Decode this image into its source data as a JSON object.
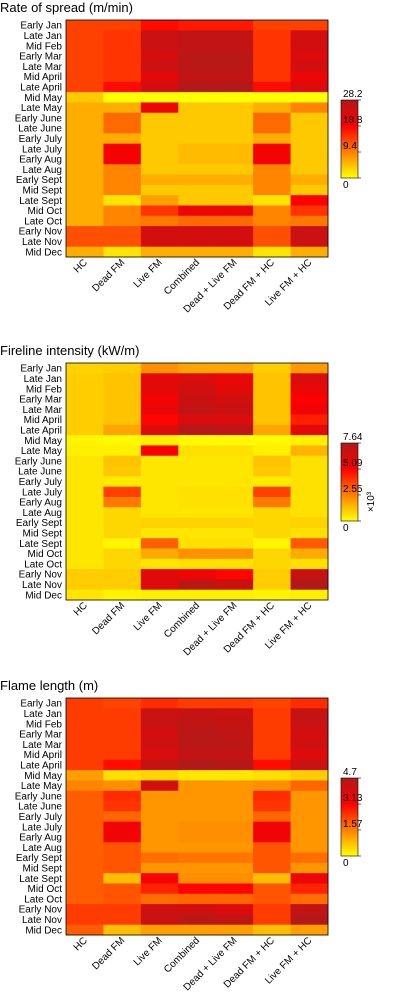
{
  "chart_data": [
    {
      "type": "heatmap",
      "title": "Rate of spread (m/min)",
      "rows": [
        "Early Jan",
        "Late Jan",
        "Mid Feb",
        "Early Mar",
        "Late Mar",
        "Mid April",
        "Late April",
        "Mid May",
        "Late May",
        "Early June",
        "Late June",
        "Early July",
        "Late July",
        "Early Aug",
        "Late Aug",
        "Early Sept",
        "Mid Sept",
        "Late Sept",
        "Mid Oct",
        "Late Oct",
        "Early Nov",
        "Late Nov",
        "Mid Dec"
      ],
      "columns": [
        "HC",
        "Dead FM",
        "Live FM",
        "Combined",
        "Dead + Live FM",
        "Dead FM + HC",
        "Live FM + HC"
      ],
      "values": [
        [
          14,
          14,
          18,
          17,
          17,
          14,
          14
        ],
        [
          14,
          15,
          25,
          26,
          26,
          15,
          24
        ],
        [
          14,
          15,
          25,
          26,
          26,
          15,
          24
        ],
        [
          14,
          15,
          24,
          27,
          27,
          15,
          23
        ],
        [
          14,
          15,
          25,
          27,
          27,
          15,
          24
        ],
        [
          14,
          15,
          22,
          26,
          26,
          15,
          21
        ],
        [
          14,
          18,
          24,
          28,
          28,
          18,
          23
        ],
        [
          4,
          0,
          0,
          0,
          0,
          0,
          0
        ],
        [
          6,
          6,
          21,
          4,
          4,
          6,
          9
        ],
        [
          6,
          11,
          4,
          4,
          4,
          11,
          4
        ],
        [
          6,
          11,
          4,
          4,
          4,
          11,
          4
        ],
        [
          6,
          6,
          4,
          4,
          4,
          6,
          4
        ],
        [
          6,
          20,
          4,
          5,
          5,
          20,
          4
        ],
        [
          6,
          20,
          4,
          5,
          5,
          20,
          4
        ],
        [
          6,
          9,
          4,
          4,
          4,
          9,
          4
        ],
        [
          6,
          9,
          6,
          6,
          6,
          9,
          6
        ],
        [
          6,
          9,
          4,
          4,
          4,
          9,
          4
        ],
        [
          6,
          2,
          7,
          4,
          4,
          2,
          19
        ],
        [
          6,
          9,
          15,
          21,
          21,
          9,
          15
        ],
        [
          6,
          9,
          10,
          11,
          11,
          9,
          10
        ],
        [
          13,
          13,
          24,
          24,
          24,
          13,
          25
        ],
        [
          13,
          13,
          24,
          24,
          24,
          13,
          25
        ],
        [
          6,
          2,
          6,
          6,
          6,
          2,
          6
        ]
      ],
      "colorbar": {
        "ticks": [
          0,
          9.4,
          18.8,
          28.2
        ],
        "tick_labels": [
          "0",
          "9.4",
          "18.8",
          "28.2"
        ],
        "min": 0,
        "max": 28.2,
        "multiplier": ""
      },
      "colormap": [
        "#ffff00",
        "#ff8000",
        "#ff0000",
        "#b01a1a"
      ]
    },
    {
      "type": "heatmap",
      "title": "Fireline intensity (kW/m)",
      "rows": [
        "Early Jan",
        "Late Jan",
        "Mid Feb",
        "Early Mar",
        "Late Mar",
        "Mid April",
        "Late April",
        "Mid May",
        "Late May",
        "Early June",
        "Late June",
        "Early July",
        "Late July",
        "Early Aug",
        "Late Aug",
        "Early Sept",
        "Mid Sept",
        "Late Sept",
        "Mid Oct",
        "Late Oct",
        "Early Nov",
        "Late Nov",
        "Mid Dec"
      ],
      "columns": [
        "HC",
        "Dead FM",
        "Live FM",
        "Combined",
        "Dead + Live FM",
        "Dead FM + HC",
        "Live FM + HC"
      ],
      "values": [
        [
          0.9,
          1.0,
          2.2,
          1.8,
          1.8,
          1.0,
          2.0
        ],
        [
          1.0,
          1.2,
          6.0,
          6.3,
          5.8,
          1.2,
          6.3
        ],
        [
          1.0,
          1.2,
          6.0,
          6.6,
          6.0,
          1.2,
          5.8
        ],
        [
          1.0,
          1.2,
          5.5,
          6.8,
          6.6,
          1.2,
          5.2
        ],
        [
          1.0,
          1.2,
          5.8,
          7.0,
          6.8,
          1.2,
          5.5
        ],
        [
          1.0,
          1.2,
          5.0,
          6.3,
          6.3,
          1.2,
          4.5
        ],
        [
          1.0,
          1.8,
          6.3,
          7.4,
          7.2,
          1.8,
          6.0
        ],
        [
          0.2,
          0.1,
          0.3,
          0.1,
          0.1,
          0.1,
          0.3
        ],
        [
          0.3,
          0.3,
          5.2,
          0.6,
          0.6,
          0.3,
          1.5
        ],
        [
          0.5,
          1.2,
          0.5,
          0.5,
          0.5,
          1.2,
          0.6
        ],
        [
          0.5,
          1.1,
          0.5,
          0.5,
          0.5,
          1.1,
          0.6
        ],
        [
          0.5,
          0.4,
          0.5,
          0.5,
          0.5,
          0.4,
          0.6
        ],
        [
          0.5,
          3.8,
          0.5,
          0.6,
          0.6,
          3.8,
          0.6
        ],
        [
          0.5,
          2.7,
          0.5,
          0.6,
          0.6,
          2.7,
          0.6
        ],
        [
          0.5,
          0.8,
          0.5,
          0.5,
          0.5,
          0.8,
          0.6
        ],
        [
          0.5,
          0.8,
          0.9,
          0.9,
          0.9,
          0.8,
          0.9
        ],
        [
          0.5,
          0.8,
          0.5,
          0.5,
          0.5,
          0.8,
          0.6
        ],
        [
          0.5,
          0.2,
          3.2,
          0.6,
          0.6,
          0.2,
          3.3
        ],
        [
          0.5,
          0.8,
          1.7,
          2.2,
          2.2,
          0.8,
          1.7
        ],
        [
          0.5,
          0.8,
          0.5,
          0.6,
          0.6,
          0.8,
          0.6
        ],
        [
          1.0,
          1.0,
          6.0,
          5.6,
          5.0,
          1.0,
          6.8
        ],
        [
          1.0,
          1.0,
          6.3,
          7.3,
          6.8,
          1.0,
          7.6
        ],
        [
          0.5,
          0.2,
          0.3,
          0.3,
          0.3,
          0.2,
          0.3
        ]
      ],
      "colorbar": {
        "ticks": [
          0,
          2.55,
          5.09,
          7.64
        ],
        "tick_labels": [
          "0",
          "2.55",
          "5.09",
          "7.64"
        ],
        "min": 0,
        "max": 7.64,
        "multiplier": "×10³"
      },
      "colormap": [
        "#ffff00",
        "#ff8000",
        "#ff0000",
        "#b01a1a"
      ]
    },
    {
      "type": "heatmap",
      "title": "Flame length (m)",
      "rows": [
        "Early Jan",
        "Late Jan",
        "Mid Feb",
        "Early Mar",
        "Late Mar",
        "Mid April",
        "Late April",
        "Mid May",
        "Late May",
        "Early June",
        "Late June",
        "Early July",
        "Late July",
        "Early Aug",
        "Late Aug",
        "Early Sept",
        "Mid Sept",
        "Late Sept",
        "Mid Oct",
        "Late Oct",
        "Early Nov",
        "Late Nov",
        "Mid Dec"
      ],
      "columns": [
        "HC",
        "Dead FM",
        "Live FM",
        "Combined",
        "Dead + Live FM",
        "Dead FM + HC",
        "Live FM + HC"
      ],
      "values": [
        [
          2.4,
          2.3,
          2.6,
          2.4,
          2.4,
          2.3,
          2.6
        ],
        [
          2.4,
          2.4,
          4.2,
          4.3,
          4.2,
          2.4,
          4.3
        ],
        [
          2.4,
          2.4,
          4.2,
          4.4,
          4.3,
          2.4,
          4.2
        ],
        [
          2.4,
          2.4,
          4.0,
          4.5,
          4.4,
          2.4,
          4.0
        ],
        [
          2.4,
          2.4,
          4.1,
          4.5,
          4.5,
          2.4,
          4.1
        ],
        [
          2.4,
          2.4,
          3.9,
          4.3,
          4.3,
          2.4,
          3.8
        ],
        [
          2.4,
          3.0,
          4.3,
          4.7,
          4.6,
          3.0,
          4.2
        ],
        [
          1.2,
          0.4,
          0.5,
          0.3,
          0.3,
          0.4,
          0.6
        ],
        [
          1.5,
          1.4,
          4.0,
          1.3,
          1.3,
          1.4,
          1.9
        ],
        [
          2.0,
          2.6,
          1.3,
          1.3,
          1.3,
          2.6,
          1.3
        ],
        [
          2.0,
          2.5,
          1.3,
          1.3,
          1.3,
          2.5,
          1.3
        ],
        [
          2.0,
          1.9,
          1.3,
          1.3,
          1.3,
          1.9,
          1.3
        ],
        [
          2.0,
          3.4,
          1.3,
          1.4,
          1.4,
          3.4,
          1.3
        ],
        [
          2.0,
          3.4,
          1.3,
          1.4,
          1.4,
          3.4,
          1.3
        ],
        [
          2.0,
          2.1,
          1.3,
          1.3,
          1.3,
          2.1,
          1.3
        ],
        [
          2.0,
          2.1,
          1.8,
          1.7,
          1.7,
          2.1,
          1.8
        ],
        [
          2.0,
          2.1,
          1.3,
          1.3,
          1.3,
          2.1,
          1.3
        ],
        [
          2.0,
          0.8,
          3.3,
          1.4,
          1.4,
          0.8,
          3.5
        ],
        [
          2.0,
          2.1,
          2.7,
          3.1,
          3.1,
          2.1,
          2.7
        ],
        [
          2.0,
          2.1,
          1.8,
          1.9,
          1.9,
          2.1,
          1.8
        ],
        [
          2.4,
          2.4,
          4.1,
          4.0,
          3.8,
          2.4,
          4.3
        ],
        [
          2.4,
          2.4,
          4.2,
          4.5,
          4.4,
          2.4,
          4.6
        ],
        [
          2.0,
          0.8,
          1.2,
          1.2,
          1.2,
          0.8,
          1.2
        ]
      ],
      "colorbar": {
        "ticks": [
          0,
          1.57,
          3.13,
          4.7
        ],
        "tick_labels": [
          "0",
          "1.57",
          "3.13",
          "4.7"
        ],
        "min": 0,
        "max": 4.7,
        "multiplier": ""
      },
      "colormap": [
        "#ffff00",
        "#ff8000",
        "#ff0000",
        "#b01a1a"
      ]
    }
  ]
}
